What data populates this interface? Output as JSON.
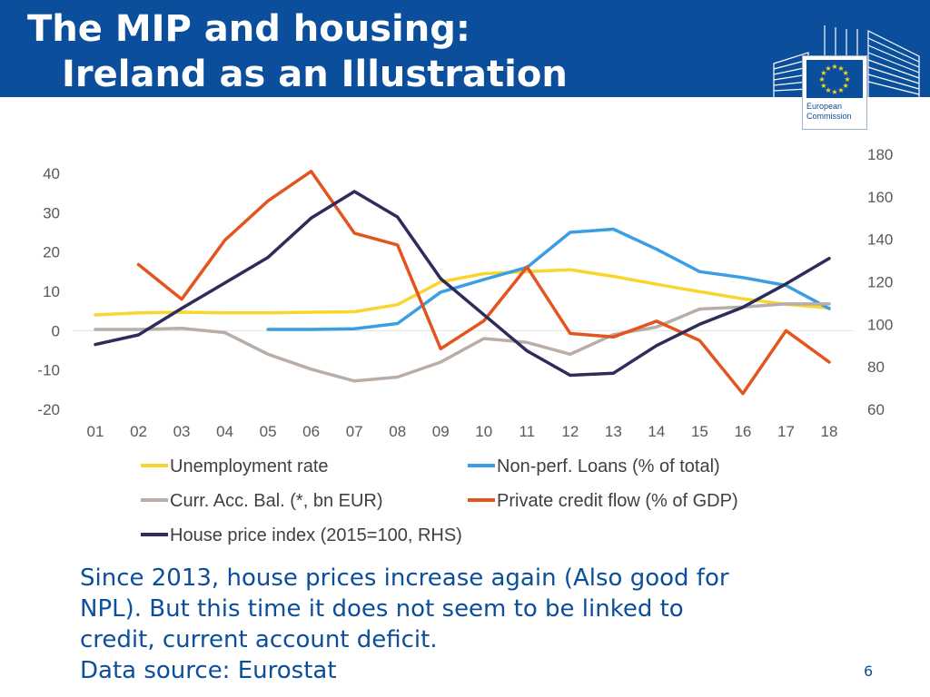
{
  "slide": {
    "title_line1": "The MIP and housing:",
    "title_line2": "Ireland as an Illustration",
    "caption_lines": [
      "Since 2013, house prices increase again (Also good for",
      "NPL). But this time it does not seem to be linked to",
      "credit, current account deficit.",
      "Data source: Eurostat"
    ],
    "page_number": "6"
  },
  "logo": {
    "line1": "European",
    "line2": "Commission",
    "flag_color": "#0b4f9c",
    "star_color": "#ffd617"
  },
  "colors": {
    "header": "#0b4f9c",
    "text_blue": "#0b4f9c"
  },
  "chart_data": {
    "type": "line",
    "categories": [
      "01",
      "02",
      "03",
      "04",
      "05",
      "06",
      "07",
      "08",
      "09",
      "10",
      "11",
      "12",
      "13",
      "14",
      "15",
      "16",
      "17",
      "18"
    ],
    "ylim_left": [
      -20,
      40
    ],
    "yticks_left": [
      -20,
      -10,
      0,
      10,
      20,
      30,
      40
    ],
    "ylim_right": [
      60,
      180
    ],
    "yticks_right": [
      60,
      80,
      100,
      120,
      140,
      160,
      180
    ],
    "grid": false,
    "legend_position": "bottom",
    "series": [
      {
        "name": "Unemployment rate",
        "color": "#f8d62e",
        "axis": "left",
        "values": [
          4.0,
          4.5,
          4.7,
          4.5,
          4.5,
          4.7,
          4.8,
          6.6,
          12.4,
          14.5,
          15.0,
          15.5,
          13.8,
          11.8,
          9.9,
          8.1,
          6.7,
          5.8
        ]
      },
      {
        "name": "Non-perf. Loans (% of total)",
        "color": "#3a9ee4",
        "axis": "left",
        "values": [
          null,
          null,
          null,
          null,
          0.3,
          0.3,
          0.5,
          1.8,
          9.8,
          13.0,
          16.1,
          25.0,
          25.8,
          20.7,
          15.0,
          13.5,
          11.5,
          5.6
        ]
      },
      {
        "name": "Curr. Acc. Bal. (*, bn EUR)",
        "color": "#b9ada7",
        "axis": "left",
        "values": [
          0.3,
          0.3,
          0.6,
          -0.5,
          -6.0,
          -9.8,
          -12.8,
          -11.8,
          -8.0,
          -2.0,
          -3.0,
          -6.0,
          -1.0,
          0.9,
          5.5,
          6.0,
          6.8,
          6.8
        ]
      },
      {
        "name": "Private credit flow (% of GDP)",
        "color": "#e4541f",
        "axis": "left",
        "values": [
          null,
          16.8,
          8.0,
          23.0,
          33.0,
          40.5,
          24.8,
          21.8,
          -4.6,
          2.5,
          16.2,
          -0.7,
          -1.6,
          2.4,
          -2.5,
          -16.0,
          0.0,
          -8.0
        ]
      },
      {
        "name": "House price index (2015=100, RHS)",
        "color": "#2e2c5b",
        "axis": "right",
        "values": [
          90.5,
          95,
          107.5,
          119.5,
          131.5,
          150,
          162.5,
          150.5,
          121.5,
          104.5,
          87.5,
          76,
          77,
          90,
          100,
          108,
          119,
          131
        ]
      }
    ]
  }
}
